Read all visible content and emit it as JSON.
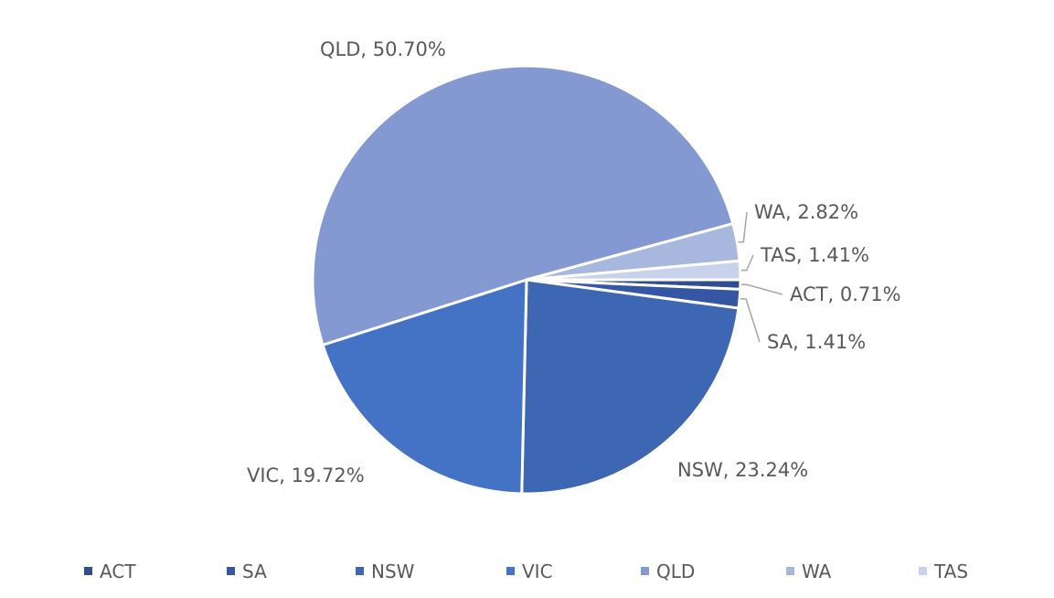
{
  "chart_data": {
    "type": "pie",
    "title": "",
    "slices": [
      {
        "name": "ACT",
        "value": 0.71,
        "label": "ACT, 0.71%",
        "color": "#2f4d8f"
      },
      {
        "name": "SA",
        "value": 1.41,
        "label": "SA, 1.41%",
        "color": "#3456a4"
      },
      {
        "name": "NSW",
        "value": 23.24,
        "label": "NSW, 23.24%",
        "color": "#3d67b3"
      },
      {
        "name": "VIC",
        "value": 19.72,
        "label": "VIC, 19.72%",
        "color": "#4472c4"
      },
      {
        "name": "QLD",
        "value": 50.7,
        "label": "QLD, 50.70%",
        "color": "#8499d1"
      },
      {
        "name": "WA",
        "value": 2.82,
        "label": "WA, 2.82%",
        "color": "#a8b7de"
      },
      {
        "name": "TAS",
        "value": 1.41,
        "label": "TAS, 1.41%",
        "color": "#c9d2eb"
      }
    ],
    "legend": {
      "position": "bottom",
      "items": [
        "ACT",
        "SA",
        "NSW",
        "VIC",
        "QLD",
        "WA",
        "TAS"
      ]
    }
  }
}
